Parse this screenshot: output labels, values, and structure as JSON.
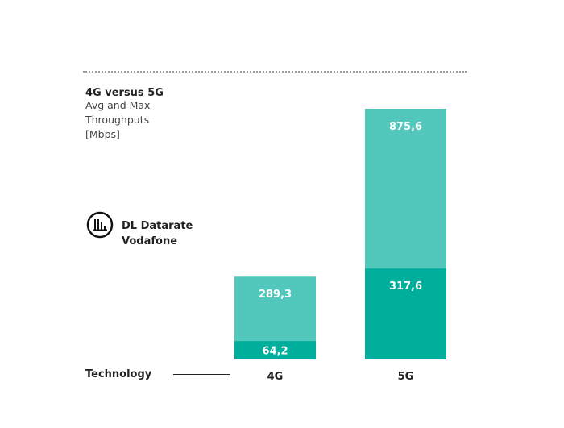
{
  "chart_data": {
    "type": "bar",
    "title": "4G versus 5G",
    "subtitle": "Avg and Max Throughputs [Mbps]",
    "xlabel": "Technology",
    "categories": [
      "4G",
      "5G"
    ],
    "series": [
      {
        "name": "Max",
        "values": [
          289.3,
          875.6
        ],
        "labels": [
          "289,3",
          "875,6"
        ],
        "color": "#52c7bb"
      },
      {
        "name": "Avg",
        "values": [
          64.2,
          317.6
        ],
        "labels": [
          "64,2",
          "317,6"
        ],
        "color": "#00ae9c"
      }
    ],
    "ylim": [
      0,
      875.6
    ],
    "grid": false,
    "overlay": true
  },
  "badge": {
    "icon": "bar-chart-circle-icon",
    "line1": "DL Datarate",
    "line2": "Vodafone"
  }
}
